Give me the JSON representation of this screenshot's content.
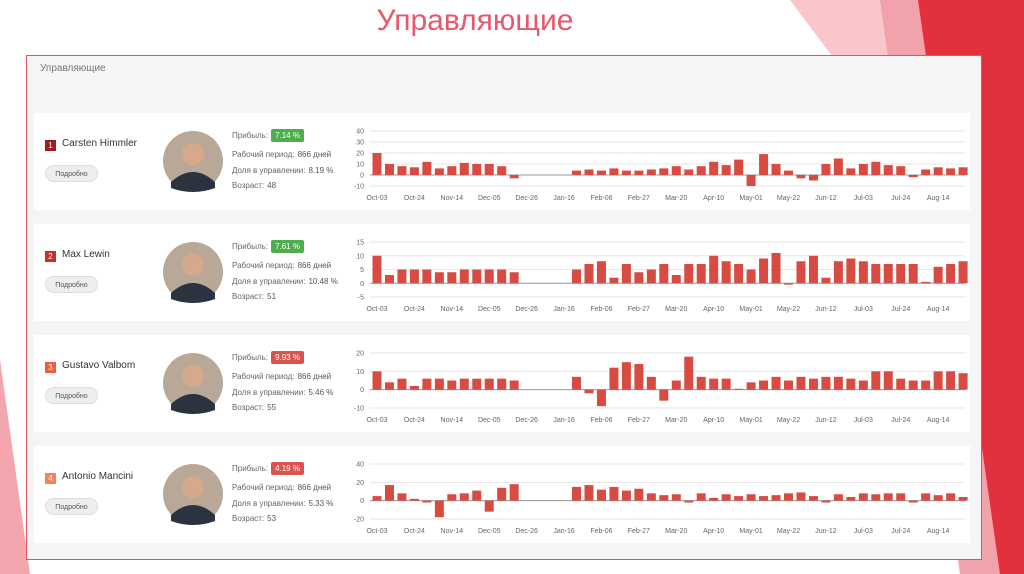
{
  "slide_title": "Управляющие",
  "panel_title": "Управляющие",
  "details_button": "Подробно",
  "labels": {
    "profit": "Прибыль:",
    "period": "Рабочий период:",
    "share": "Доля в управлении:",
    "age": "Возраст:"
  },
  "managers": [
    {
      "rank": "1",
      "name": "Carsten Himmler",
      "profit": "7.14 %",
      "badge_color": "#4cae4c",
      "rank_color": "#a31b1b",
      "period": "866 дней",
      "share": "8.19 %",
      "age": "48"
    },
    {
      "rank": "2",
      "name": "Max Lewin",
      "profit": "7.61 %",
      "badge_color": "#4cae4c",
      "rank_color": "#c9302c",
      "period": "866 дней",
      "share": "10.48 %",
      "age": "51"
    },
    {
      "rank": "3",
      "name": "Gustavo Valbom",
      "profit": "9.93 %",
      "badge_color": "#d9534f",
      "rank_color": "#e8603c",
      "period": "866 дней",
      "share": "5.46 %",
      "age": "55"
    },
    {
      "rank": "4",
      "name": "Antonio Mancini",
      "profit": "4.19 %",
      "badge_color": "#d9534f",
      "rank_color": "#f0845c",
      "period": "866 дней",
      "share": "5.33 %",
      "age": "53"
    }
  ],
  "chart_data": [
    {
      "type": "bar",
      "color": "#d84b43",
      "ylim": [
        -10,
        40
      ],
      "yticks": [
        -10,
        0,
        10,
        20,
        30,
        40
      ],
      "categories": [
        "Oct-03",
        null,
        null,
        "Oct-24",
        null,
        null,
        "Nov-14",
        null,
        null,
        "Dec-05",
        null,
        null,
        "Dec-26",
        null,
        null,
        "Jan-16",
        null,
        null,
        "Feb-06",
        null,
        null,
        "Feb-27",
        null,
        null,
        "Mar-20",
        null,
        null,
        "Apr-10",
        null,
        null,
        "May-01",
        null,
        null,
        "May-22",
        null,
        null,
        "Jun-12",
        null,
        null,
        "Jul-03",
        null,
        null,
        "Jul-24",
        null,
        null,
        "Aug-14",
        null,
        null
      ],
      "values": [
        20,
        10,
        8,
        7,
        12,
        6,
        8,
        11,
        10,
        10,
        8,
        -3,
        null,
        null,
        null,
        null,
        4,
        5,
        4,
        6,
        4,
        4,
        5,
        6,
        8,
        5,
        8,
        12,
        9,
        14,
        -10,
        19,
        10,
        4,
        -3,
        -5,
        10,
        15,
        6,
        10,
        12,
        9,
        8,
        -2,
        5,
        7,
        6,
        7
      ]
    },
    {
      "type": "bar",
      "color": "#d84b43",
      "ylim": [
        -5,
        15
      ],
      "yticks": [
        -5,
        0,
        5,
        10,
        15
      ],
      "categories": [
        "Oct-03",
        null,
        null,
        "Oct-24",
        null,
        null,
        "Nov-14",
        null,
        null,
        "Dec-05",
        null,
        null,
        "Dec-26",
        null,
        null,
        "Jan-16",
        null,
        null,
        "Feb-06",
        null,
        null,
        "Feb-27",
        null,
        null,
        "Mar-20",
        null,
        null,
        "Apr-10",
        null,
        null,
        "May-01",
        null,
        null,
        "May-22",
        null,
        null,
        "Jun-12",
        null,
        null,
        "Jul-03",
        null,
        null,
        "Jul-24",
        null,
        null,
        "Aug-14",
        null,
        null
      ],
      "values": [
        10,
        3,
        5,
        5,
        5,
        4,
        4,
        5,
        5,
        5,
        5,
        4,
        null,
        null,
        null,
        null,
        5,
        7,
        8,
        2,
        7,
        4,
        5,
        7,
        3,
        7,
        7,
        10,
        8,
        7,
        5,
        9,
        11,
        -0.5,
        8,
        10,
        2,
        8,
        9,
        8,
        7,
        7,
        7,
        7,
        0.5,
        6,
        7,
        8
      ]
    },
    {
      "type": "bar",
      "color": "#d84b43",
      "ylim": [
        -10,
        20
      ],
      "yticks": [
        -10,
        0,
        10,
        20
      ],
      "categories": [
        "Oct-03",
        null,
        null,
        "Oct-24",
        null,
        null,
        "Nov-14",
        null,
        null,
        "Dec-05",
        null,
        null,
        "Dec-26",
        null,
        null,
        "Jan-16",
        null,
        null,
        "Feb-06",
        null,
        null,
        "Feb-27",
        null,
        null,
        "Mar-20",
        null,
        null,
        "Apr-10",
        null,
        null,
        "May-01",
        null,
        null,
        "May-22",
        null,
        null,
        "Jun-12",
        null,
        null,
        "Jul-03",
        null,
        null,
        "Jul-24",
        null,
        null,
        "Aug-14",
        null,
        null
      ],
      "values": [
        10,
        4,
        6,
        2,
        6,
        6,
        5,
        6,
        6,
        6,
        6,
        5,
        null,
        null,
        null,
        null,
        7,
        -2,
        -9,
        12,
        15,
        14,
        7,
        -6,
        5,
        18,
        7,
        6,
        6,
        0.5,
        4,
        5,
        7,
        5,
        7,
        6,
        7,
        7,
        6,
        5,
        10,
        10,
        6,
        5,
        5,
        10,
        10,
        9
      ]
    },
    {
      "type": "bar",
      "color": "#d84b43",
      "ylim": [
        -20,
        40
      ],
      "yticks": [
        -20,
        0,
        20,
        40
      ],
      "categories": [
        "Oct-03",
        null,
        null,
        "Oct-24",
        null,
        null,
        "Nov-14",
        null,
        null,
        "Dec-05",
        null,
        null,
        "Dec-26",
        null,
        null,
        "Jan-16",
        null,
        null,
        "Feb-06",
        null,
        null,
        "Feb-27",
        null,
        null,
        "Mar-20",
        null,
        null,
        "Apr-10",
        null,
        null,
        "May-01",
        null,
        null,
        "May-22",
        null,
        null,
        "Jun-12",
        null,
        null,
        "Jul-03",
        null,
        null,
        "Jul-24",
        null,
        null,
        "Aug-14",
        null,
        null
      ],
      "values": [
        5,
        17,
        8,
        2,
        -2,
        -18,
        7,
        8,
        11,
        -12,
        14,
        18,
        null,
        null,
        null,
        null,
        15,
        17,
        12,
        15,
        11,
        13,
        8,
        6,
        7,
        -2,
        8,
        3,
        7,
        5,
        7,
        5,
        6,
        8,
        9,
        5,
        -2,
        7,
        4,
        8,
        7,
        8,
        8,
        -2,
        8,
        6,
        8,
        4
      ]
    }
  ]
}
